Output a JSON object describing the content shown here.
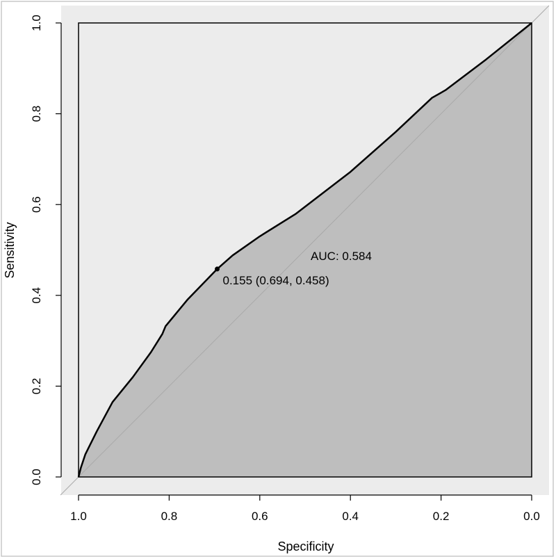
{
  "chart_data": {
    "type": "line",
    "title": "",
    "xlabel": "Specificity",
    "ylabel": "Sensitivity",
    "xlim": [
      1.0,
      0.0
    ],
    "ylim": [
      0.0,
      1.0
    ],
    "x_reversed": true,
    "x_ticks": [
      "1.0",
      "0.8",
      "0.6",
      "0.4",
      "0.2",
      "0.0"
    ],
    "y_ticks": [
      "0.0",
      "0.2",
      "0.4",
      "0.6",
      "0.8",
      "1.0"
    ],
    "grid": false,
    "series": [
      {
        "x": [
          1.0,
          0.995,
          0.985,
          0.96,
          0.925,
          0.88,
          0.84,
          0.815,
          0.808,
          0.76,
          0.694,
          0.66,
          0.6,
          0.52,
          0.4,
          0.3,
          0.22,
          0.19,
          0.1,
          0.0
        ],
        "y": [
          0.0,
          0.02,
          0.05,
          0.1,
          0.165,
          0.22,
          0.275,
          0.315,
          0.332,
          0.39,
          0.458,
          0.488,
          0.53,
          0.58,
          0.672,
          0.76,
          0.835,
          0.852,
          0.92,
          1.0
        ]
      }
    ],
    "reference_line": {
      "x": [
        1.0,
        0.0
      ],
      "y": [
        0.0,
        1.0
      ]
    },
    "threshold_point": {
      "x": 0.694,
      "y": 0.458,
      "label": "0.155 (0.694, 0.458)"
    },
    "auc_label": "AUC: 0.584",
    "colors": {
      "plot_background": "#ececec",
      "auc_fill": "#bebebe",
      "curve": "#000000",
      "reference": "#a9a9a9"
    }
  }
}
